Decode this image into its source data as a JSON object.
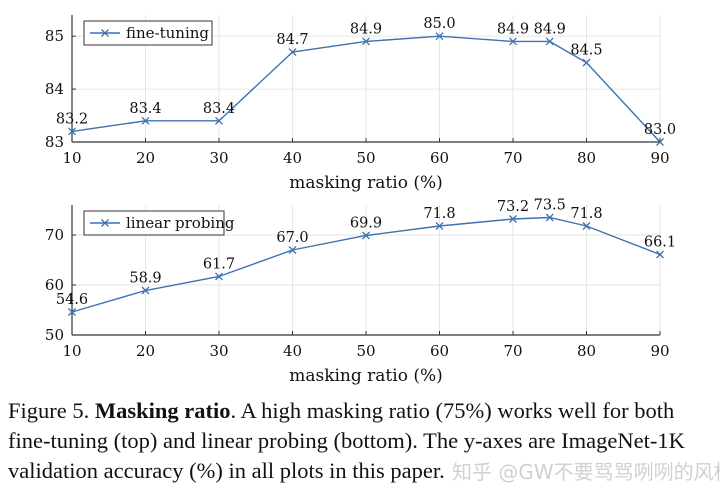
{
  "chart_data": [
    {
      "type": "line",
      "xlabel": "masking ratio (%)",
      "x": [
        10,
        20,
        30,
        40,
        50,
        60,
        70,
        75,
        80,
        90
      ],
      "xticks": [
        10,
        20,
        30,
        40,
        50,
        60,
        70,
        80,
        90
      ],
      "yticks": [
        83,
        84,
        85
      ],
      "ylim": [
        83,
        85.4
      ],
      "grid": true,
      "legend_position": "top-left",
      "marker": "x",
      "color": "#3f72af",
      "series": [
        {
          "name": "fine-tuning",
          "values": [
            83.2,
            83.4,
            83.4,
            84.7,
            84.9,
            85.0,
            84.9,
            84.9,
            84.5,
            83.0
          ]
        }
      ]
    },
    {
      "type": "line",
      "xlabel": "masking ratio (%)",
      "x": [
        10,
        20,
        30,
        40,
        50,
        60,
        70,
        75,
        80,
        90
      ],
      "xticks": [
        10,
        20,
        30,
        40,
        50,
        60,
        70,
        80,
        90
      ],
      "yticks": [
        50,
        60,
        70
      ],
      "ylim": [
        50,
        76
      ],
      "grid": true,
      "legend_position": "top-left",
      "marker": "x",
      "color": "#3f72af",
      "series": [
        {
          "name": "linear probing",
          "values": [
            54.6,
            58.9,
            61.7,
            67.0,
            69.9,
            71.8,
            73.2,
            73.5,
            71.8,
            66.1
          ]
        }
      ]
    }
  ],
  "caption": {
    "prefix": "Figure 5. ",
    "bold": "Masking ratio",
    "text": ". A high masking ratio (75%) works well for both fine-tuning (top) and linear probing (bottom). The y-axes are ImageNet-1K validation accuracy (%) in all plots in this paper."
  },
  "watermark": "知乎 @GW不要骂骂咧咧的风格"
}
